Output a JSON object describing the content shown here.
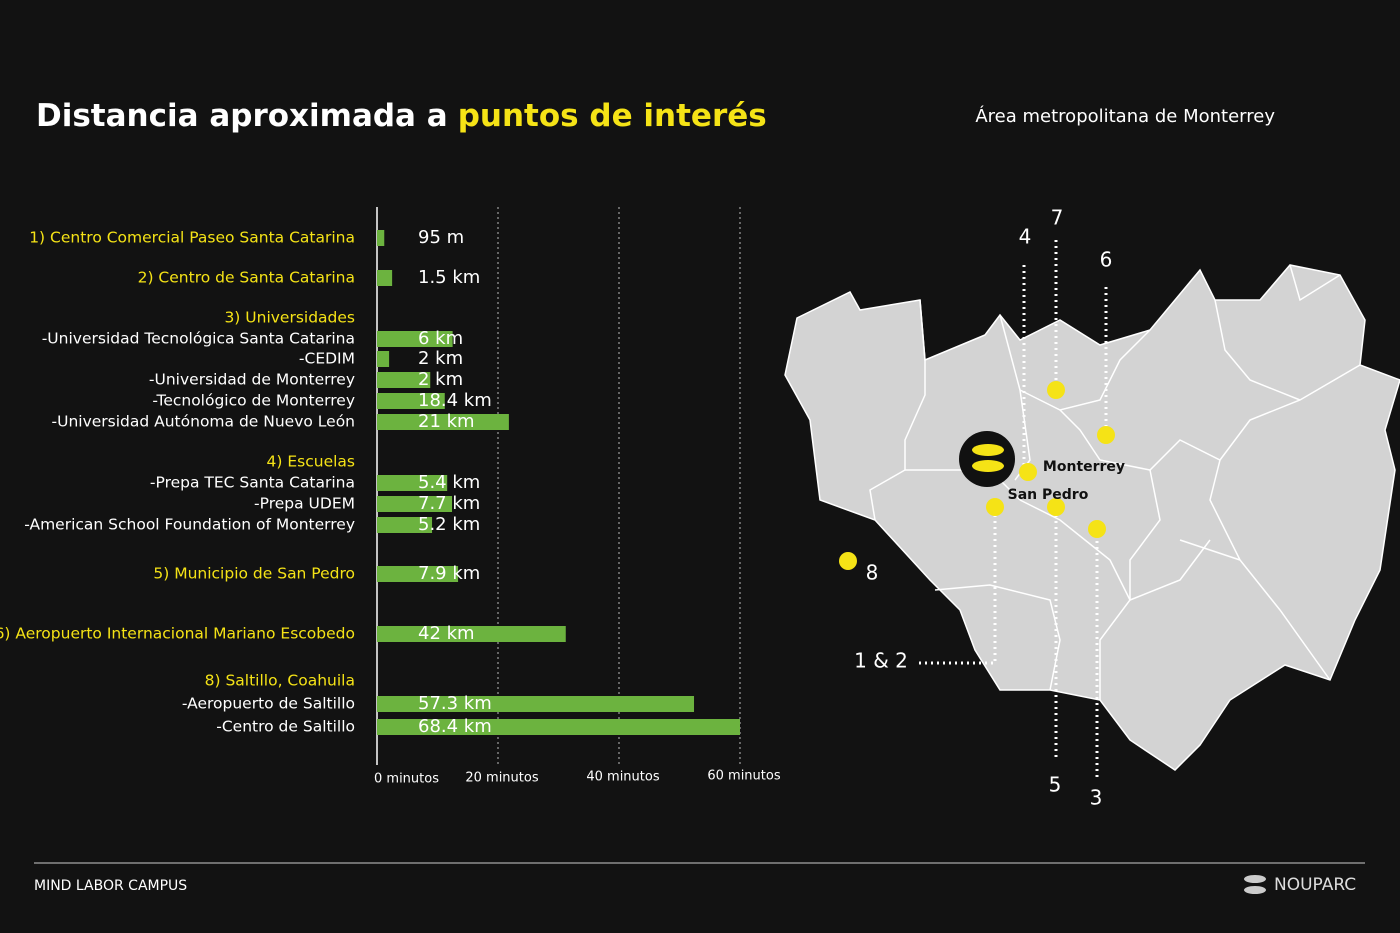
{
  "header": {
    "title": "Distancia aproximada a",
    "title_highlight": "puntos de interés"
  },
  "chart_data": {
    "type": "bar",
    "orientation": "horizontal",
    "categories": [
      "1) Centro Comercial Paseo Santa Catarina",
      "2) Centro de Santa Catarina",
      "3) Universidades",
      "-Universidad Tecnológica Santa Catarina",
      "-CEDIM",
      "-Universidad de Monterrey",
      "-Tecnológico de Monterrey",
      "-Universidad Autónoma de Nuevo León",
      "4) Escuelas",
      "-Prepa TEC Santa Catarina",
      "-Prepa UDEM",
      "-American School Foundation of Monterrey",
      "5) Municipio de San Pedro",
      "6) Aeropuerto Internacional Mariano Escobedo",
      "8) Saltillo, Coahuila",
      "-Aeropuerto de Saltillo",
      "-Centro de Saltillo"
    ],
    "values": [
      1.2,
      2.5,
      null,
      12.5,
      2,
      8.8,
      11.2,
      21.8,
      null,
      11.6,
      12.4,
      9.1,
      13.4,
      31.2,
      null,
      52.4,
      60
    ],
    "distance_labels": [
      "95 m",
      "1.5 km",
      null,
      "6 km",
      "2 km",
      "2 km",
      "18.4 km",
      "21 km",
      null,
      "5.4 km",
      "7.7 km",
      "5.2 km",
      "7.9 km",
      "42 km",
      null,
      "57.3 km",
      "68.4 km"
    ],
    "color": "#6cb33f",
    "xlim": [
      0,
      60
    ],
    "xticks": [
      {
        "value": 0,
        "label": "0 minutos"
      },
      {
        "value": 20,
        "label": "20 minutos"
      },
      {
        "value": 40,
        "label": "40 minutos"
      },
      {
        "value": 60,
        "label": "60 minutos"
      }
    ],
    "grid": true
  },
  "map": {
    "title": "Área metropolitana de Monterrey",
    "labels": [
      "7",
      "4",
      "6",
      "8",
      "1 & 2",
      "5",
      "3",
      "Monterrey",
      "San Pedro"
    ]
  },
  "footer": {
    "left": "MIND LABOR CAMPUS",
    "brand": "NOUPARC"
  }
}
